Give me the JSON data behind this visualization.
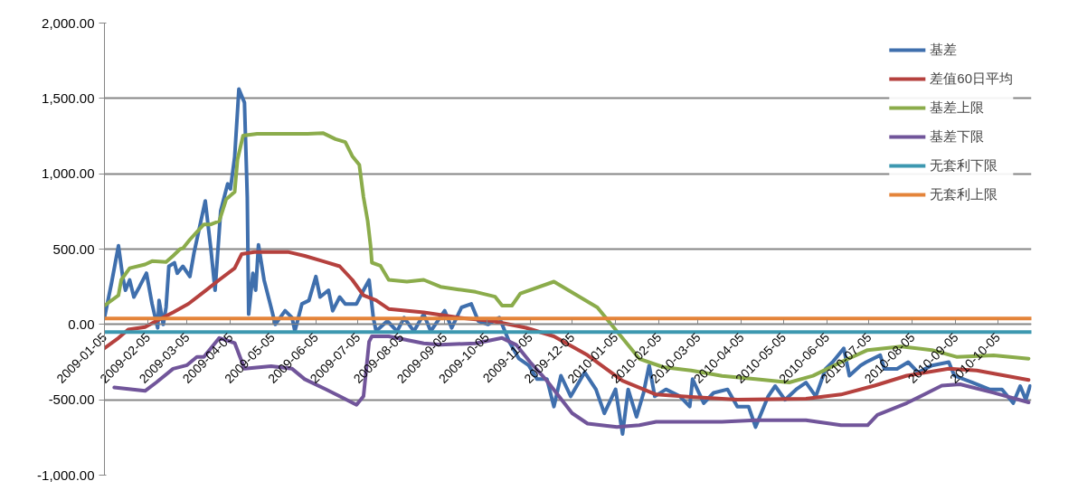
{
  "chart_data": {
    "type": "line",
    "xlim": [
      "2009-01-05",
      "2010-10-29"
    ],
    "ylim": [
      -1000,
      2000
    ],
    "xticks": [
      "2009-01-05",
      "2009-02-05",
      "2009-03-05",
      "2009-04-05",
      "2009-05-05",
      "2009-06-05",
      "2009-07-05",
      "2009-08-05",
      "2009-09-05",
      "2009-10-05",
      "2009-11-05",
      "2009-12-05",
      "2010-01-05",
      "2010-02-05",
      "2010-03-05",
      "2010-04-05",
      "2010-05-05",
      "2010-06-05",
      "2010-07-05",
      "2010-08-05",
      "2010-09-05",
      "2010-10-05"
    ],
    "yticks": [
      {
        "value": -1000,
        "label": "-1,000.00"
      },
      {
        "value": -500,
        "label": "-500.00"
      },
      {
        "value": 0,
        "label": "0.00"
      },
      {
        "value": 500,
        "label": "500.00"
      },
      {
        "value": 1000,
        "label": "1,000.00"
      },
      {
        "value": 1500,
        "label": "1,500.00"
      },
      {
        "value": 2000,
        "label": "2,000.00"
      }
    ],
    "grid": "y",
    "legend": "top right",
    "line_style": "solid",
    "series": [
      {
        "name": "基差",
        "color": "#3f6fad",
        "x": [
          "2009-01-05",
          "2009-01-10",
          "2009-01-15",
          "2009-01-18",
          "2009-01-20",
          "2009-01-23",
          "2009-01-26",
          "2009-01-30",
          "2009-02-04",
          "2009-02-08",
          "2009-02-12",
          "2009-02-13",
          "2009-02-16",
          "2009-02-18",
          "2009-02-20",
          "2009-02-24",
          "2009-02-26",
          "2009-03-02",
          "2009-03-07",
          "2009-03-10",
          "2009-03-18",
          "2009-03-22",
          "2009-03-25",
          "2009-03-29",
          "2009-04-03",
          "2009-04-05",
          "2009-04-08",
          "2009-04-11",
          "2009-04-15",
          "2009-04-17",
          "2009-04-18",
          "2009-04-21",
          "2009-04-23",
          "2009-04-25",
          "2009-04-29",
          "2009-05-04",
          "2009-05-07",
          "2009-05-14",
          "2009-05-19",
          "2009-05-21",
          "2009-05-26",
          "2009-05-31",
          "2009-06-05",
          "2009-06-08",
          "2009-06-14",
          "2009-06-17",
          "2009-06-22",
          "2009-06-26",
          "2009-07-04",
          "2009-07-09",
          "2009-07-13",
          "2009-07-16",
          "2009-07-18",
          "2009-07-26",
          "2009-08-02",
          "2009-08-07",
          "2009-08-14",
          "2009-08-21",
          "2009-08-26",
          "2009-09-05",
          "2009-09-10",
          "2009-09-17",
          "2009-09-24",
          "2009-09-29",
          "2009-10-06",
          "2009-10-14",
          "2009-10-21",
          "2009-10-28",
          "2009-11-04",
          "2009-11-10",
          "2009-11-17",
          "2009-11-22",
          "2009-11-27",
          "2009-12-04",
          "2009-12-14",
          "2009-12-22",
          "2009-12-28",
          "2010-01-05",
          "2010-01-10",
          "2010-01-14",
          "2010-01-20",
          "2010-01-25",
          "2010-01-29",
          "2010-02-02",
          "2010-02-10",
          "2010-02-20",
          "2010-02-27",
          "2010-03-01",
          "2010-03-09",
          "2010-03-16",
          "2010-03-26",
          "2010-04-02",
          "2010-04-10",
          "2010-04-15",
          "2010-04-24",
          "2010-04-29",
          "2010-05-06",
          "2010-05-14",
          "2010-05-21",
          "2010-05-28",
          "2010-06-04",
          "2010-06-09",
          "2010-06-17",
          "2010-06-21",
          "2010-06-29",
          "2010-07-03",
          "2010-07-13",
          "2010-07-16",
          "2010-07-25",
          "2010-08-02",
          "2010-08-09",
          "2010-08-19",
          "2010-08-31",
          "2010-09-04",
          "2010-09-17",
          "2010-09-29",
          "2010-10-08",
          "2010-10-16",
          "2010-10-21",
          "2010-10-25",
          "2010-10-28"
        ],
        "values": [
          45,
          272,
          522,
          318,
          227,
          295,
          182,
          250,
          340,
          136,
          -23,
          159,
          0,
          113,
          386,
          409,
          340,
          386,
          318,
          477,
          820,
          500,
          227,
          753,
          933,
          899,
          1112,
          1562,
          1472,
          843,
          68,
          340,
          227,
          528,
          295,
          113,
          0,
          91,
          45,
          -45,
          136,
          159,
          318,
          182,
          227,
          91,
          182,
          136,
          136,
          227,
          295,
          45,
          -45,
          23,
          -45,
          45,
          -45,
          68,
          -45,
          91,
          -23,
          113,
          136,
          23,
          0,
          45,
          -113,
          -227,
          -272,
          -363,
          -363,
          -545,
          -340,
          -477,
          -318,
          -431,
          -590,
          -431,
          -727,
          -431,
          -613,
          -454,
          -272,
          -477,
          -431,
          -477,
          -545,
          -363,
          -522,
          -454,
          -431,
          -545,
          -545,
          -681,
          -477,
          -409,
          -500,
          -431,
          -386,
          -477,
          -295,
          -250,
          -159,
          -340,
          -272,
          -250,
          -204,
          -295,
          -295,
          -250,
          -318,
          -272,
          -250,
          -340,
          -386,
          -431,
          -431,
          -522,
          -409,
          -500,
          -409
        ]
      },
      {
        "name": "差值60日平均",
        "color": "#b5413e",
        "x": [
          "2009-01-05",
          "2009-01-15",
          "2009-01-22",
          "2009-02-03",
          "2009-02-11",
          "2009-02-23",
          "2009-03-06",
          "2009-03-17",
          "2009-03-28",
          "2009-04-08",
          "2009-04-13",
          "2009-04-22",
          "2009-05-16",
          "2009-05-28",
          "2009-06-10",
          "2009-06-22",
          "2009-07-01",
          "2009-07-09",
          "2009-07-18",
          "2009-07-27",
          "2009-08-21",
          "2009-09-15",
          "2009-10-09",
          "2009-11-02",
          "2009-11-22",
          "2009-12-16",
          "2010-01-10",
          "2010-02-03",
          "2010-02-28",
          "2010-04-02",
          "2010-05-21",
          "2010-06-15",
          "2010-07-09",
          "2010-08-01",
          "2010-08-31",
          "2010-09-20",
          "2010-10-27"
        ],
        "values": [
          -158,
          -90,
          -34,
          -17,
          23,
          80,
          137,
          216,
          296,
          373,
          467,
          481,
          481,
          455,
          420,
          386,
          296,
          193,
          160,
          103,
          80,
          45,
          23,
          -22,
          -79,
          -204,
          -374,
          -465,
          -481,
          -499,
          -493,
          -465,
          -406,
          -340,
          -294,
          -306,
          -368
        ]
      },
      {
        "name": "基差上限",
        "color": "#8bac4b",
        "x": [
          "2009-01-05",
          "2009-01-15",
          "2009-01-17",
          "2009-01-23",
          "2009-02-03",
          "2009-02-08",
          "2009-02-18",
          "2009-02-23",
          "2009-02-28",
          "2009-03-02",
          "2009-03-07",
          "2009-03-17",
          "2009-03-22",
          "2009-03-28",
          "2009-04-02",
          "2009-04-08",
          "2009-04-10",
          "2009-04-14",
          "2009-04-24",
          "2009-05-30",
          "2009-06-10",
          "2009-06-19",
          "2009-06-26",
          "2009-07-01",
          "2009-07-06",
          "2009-07-09",
          "2009-07-12",
          "2009-07-14",
          "2009-07-15",
          "2009-07-21",
          "2009-07-27",
          "2009-08-09",
          "2009-08-21",
          "2009-09-02",
          "2009-09-15",
          "2009-09-27",
          "2009-10-11",
          "2009-10-16",
          "2009-10-23",
          "2009-10-29",
          "2009-11-22",
          "2009-12-23",
          "2010-01-06",
          "2010-01-22",
          "2010-02-08",
          "2010-02-28",
          "2010-03-22",
          "2010-04-15",
          "2010-05-09",
          "2010-05-26",
          "2010-06-15",
          "2010-07-04",
          "2010-07-28",
          "2010-08-19",
          "2010-09-06",
          "2010-10-02",
          "2010-10-27"
        ],
        "values": [
          125,
          193,
          296,
          373,
          398,
          420,
          414,
          455,
          500,
          505,
          563,
          664,
          664,
          686,
          832,
          879,
          1094,
          1253,
          1265,
          1265,
          1270,
          1230,
          1210,
          1117,
          1060,
          845,
          686,
          526,
          410,
          390,
          296,
          284,
          296,
          250,
          232,
          216,
          184,
          125,
          125,
          205,
          284,
          113,
          -46,
          -228,
          -283,
          -306,
          -341,
          -363,
          -385,
          -341,
          -250,
          -170,
          -146,
          -170,
          -216,
          -205,
          -227
        ]
      },
      {
        "name": "基差下限",
        "color": "#71559a",
        "x": [
          "2009-01-12",
          "2009-02-03",
          "2009-02-11",
          "2009-02-23",
          "2009-03-05",
          "2009-03-12",
          "2009-03-17",
          "2009-03-28",
          "2009-04-08",
          "2009-04-15",
          "2009-05-04",
          "2009-05-19",
          "2009-05-28",
          "2009-06-12",
          "2009-06-22",
          "2009-07-04",
          "2009-07-09",
          "2009-07-13",
          "2009-07-15",
          "2009-07-27",
          "2009-08-21",
          "2009-09-02",
          "2009-09-27",
          "2009-10-16",
          "2009-10-26",
          "2009-11-05",
          "2009-11-16",
          "2009-12-05",
          "2009-12-16",
          "2010-01-06",
          "2010-01-22",
          "2010-02-03",
          "2010-03-22",
          "2010-04-15",
          "2010-05-21",
          "2010-06-15",
          "2010-07-04",
          "2010-07-11",
          "2010-08-01",
          "2010-08-26",
          "2010-09-08",
          "2010-10-02",
          "2010-10-27"
        ],
        "values": [
          -418,
          -441,
          -385,
          -294,
          -270,
          -216,
          -216,
          -90,
          -123,
          -294,
          -277,
          -294,
          -363,
          -430,
          -477,
          -533,
          -477,
          -114,
          -79,
          -79,
          -125,
          -135,
          -125,
          -90,
          -135,
          -250,
          -363,
          -589,
          -658,
          -680,
          -668,
          -646,
          -646,
          -635,
          -635,
          -669,
          -669,
          -600,
          -522,
          -406,
          -397,
          -453,
          -517
        ]
      },
      {
        "name": "无套利下限",
        "color": "#3d98b0",
        "x": [
          "2009-01-05",
          "2010-10-29"
        ],
        "values": [
          -50,
          -50
        ]
      },
      {
        "name": "无套利上限",
        "color": "#e4843a",
        "x": [
          "2009-01-05",
          "2010-10-29"
        ],
        "values": [
          40,
          40
        ]
      }
    ]
  }
}
